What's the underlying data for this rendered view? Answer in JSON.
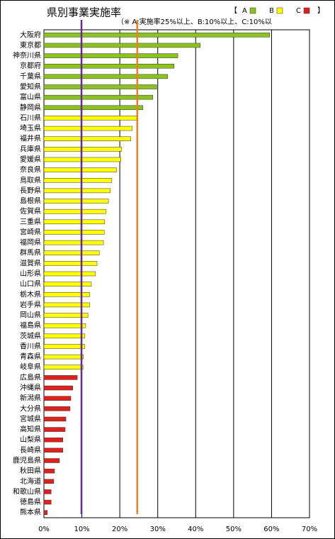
{
  "chart_data": {
    "type": "bar",
    "orientation": "horizontal",
    "title": "県別事業実施率",
    "legend_open": "【",
    "legend_close": "】",
    "note": "（※ A:実施率25%以上、B:10%以上、C:10%以",
    "categories": [
      "大阪府",
      "東京都",
      "神奈川県",
      "京都府",
      "千葉県",
      "愛知県",
      "富山県",
      "静岡県",
      "石川県",
      "埼玉県",
      "福井県",
      "兵庫県",
      "愛媛県",
      "奈良県",
      "鳥取県",
      "長野県",
      "島根県",
      "佐賀県",
      "三重県",
      "宮崎県",
      "福岡県",
      "群馬県",
      "滋賀県",
      "山形県",
      "山口県",
      "栃木県",
      "岩手県",
      "岡山県",
      "福島県",
      "茨城県",
      "香川県",
      "青森県",
      "岐阜県",
      "広島県",
      "沖縄県",
      "新潟県",
      "大分県",
      "宮城県",
      "高知県",
      "山梨県",
      "長崎県",
      "鹿児島県",
      "秋田県",
      "北海道",
      "和歌山県",
      "徳島県",
      "熊本県"
    ],
    "series": [
      {
        "name": "A",
        "color": "#8cc21e",
        "values": [
          59.5,
          41.2,
          35.3,
          34.3,
          32.6,
          29.7,
          28.7,
          26.1,
          null,
          null,
          null,
          null,
          null,
          null,
          null,
          null,
          null,
          null,
          null,
          null,
          null,
          null,
          null,
          null,
          null,
          null,
          null,
          null,
          null,
          null,
          null,
          null,
          null,
          null,
          null,
          null,
          null,
          null,
          null,
          null,
          null,
          null,
          null,
          null,
          null,
          null,
          null
        ]
      },
      {
        "name": "B",
        "color": "#ffff00",
        "values": [
          null,
          null,
          null,
          null,
          null,
          null,
          null,
          null,
          24.6,
          23.3,
          22.9,
          20.5,
          20.3,
          19.2,
          17.9,
          17.5,
          17.0,
          16.4,
          16.0,
          15.9,
          15.7,
          14.6,
          14.0,
          13.6,
          12.5,
          12.1,
          12.1,
          11.6,
          11.0,
          10.8,
          10.8,
          10.4,
          10.3,
          null,
          null,
          null,
          null,
          null,
          null,
          null,
          null,
          null,
          null,
          null,
          null,
          null,
          null
        ]
      },
      {
        "name": "C",
        "color": "#e0201c",
        "values": [
          null,
          null,
          null,
          null,
          null,
          null,
          null,
          null,
          null,
          null,
          null,
          null,
          null,
          null,
          null,
          null,
          null,
          null,
          null,
          null,
          null,
          null,
          null,
          null,
          null,
          null,
          null,
          null,
          null,
          null,
          null,
          null,
          null,
          8.8,
          7.6,
          7.1,
          6.9,
          5.8,
          5.6,
          5.0,
          5.0,
          4.1,
          2.8,
          2.6,
          1.9,
          1.9,
          0.9
        ]
      }
    ],
    "reference_lines": [
      {
        "value": 9.9,
        "color": "#6a2c8c"
      },
      {
        "value": 24.6,
        "color": "#f07f1e"
      }
    ],
    "xlim": [
      0,
      70
    ],
    "xticks": [
      {
        "value": 0,
        "label": "0%"
      },
      {
        "value": 10,
        "label": "10%"
      },
      {
        "value": 20,
        "label": "20%"
      },
      {
        "value": 30,
        "label": "30%"
      },
      {
        "value": 40,
        "label": "40%"
      },
      {
        "value": 50,
        "label": "50%"
      },
      {
        "value": 60,
        "label": "60%"
      },
      {
        "value": 70,
        "label": "70%"
      }
    ],
    "grid": true
  }
}
